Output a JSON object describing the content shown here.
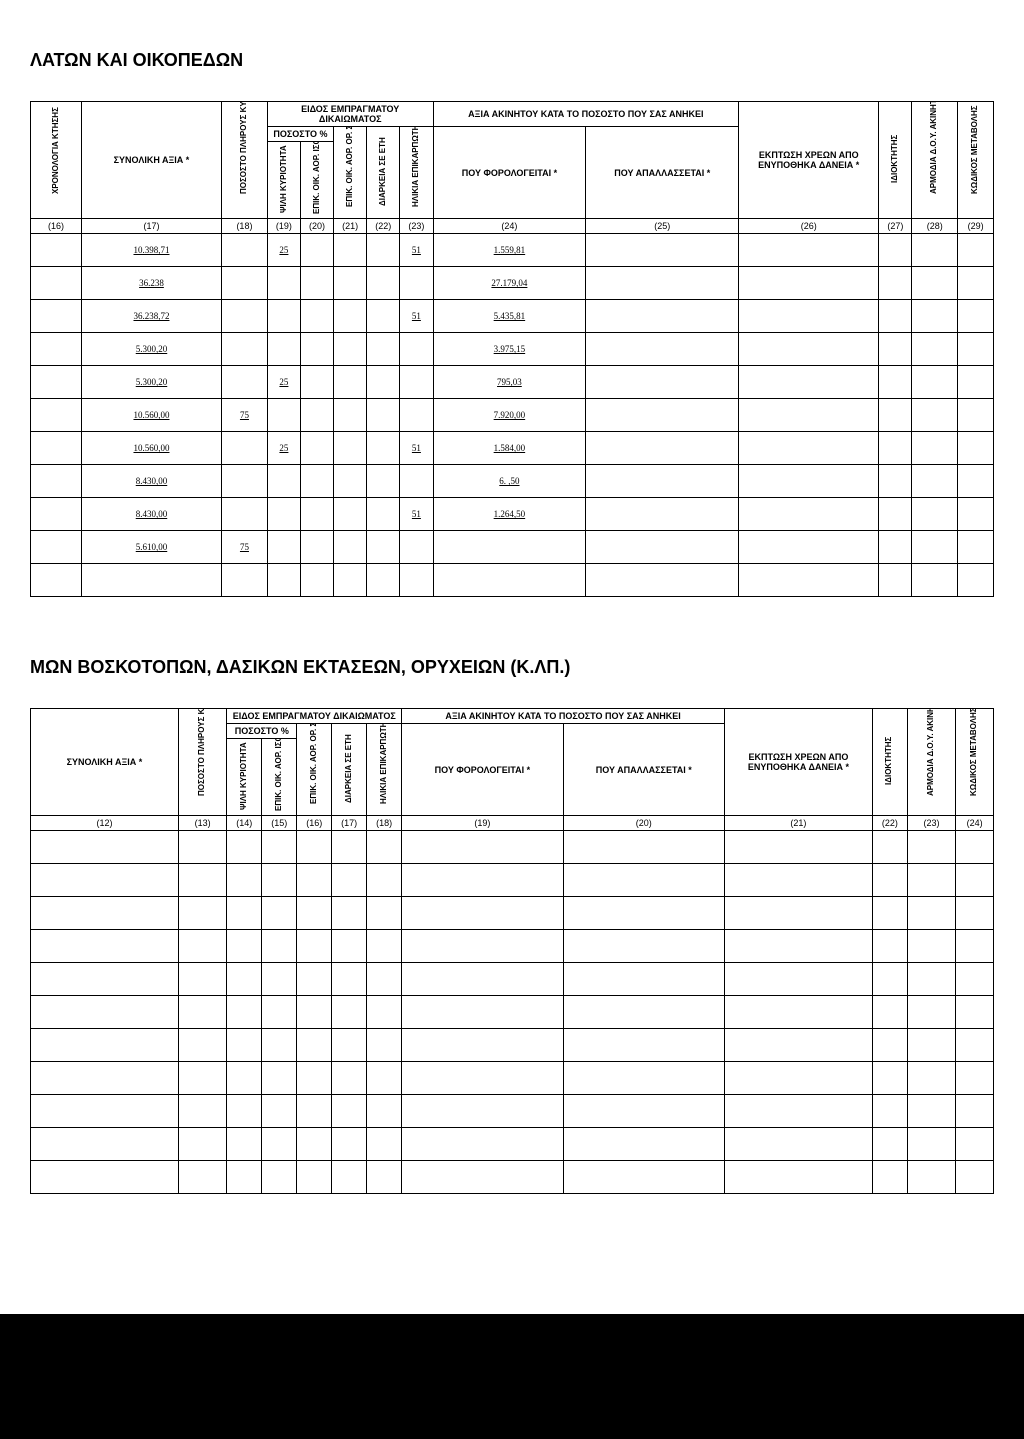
{
  "title1": "ΛΑΤΩΝ ΚΑΙ ΟΙΚΟΠΕΔΩΝ",
  "title2": "ΜΩΝ ΒΟΣΚΟΤΟΠΩΝ, ΔΑΣΙΚΩΝ ΕΚΤΑΣΕΩΝ, ΟΡΥΧΕΙΩΝ (Κ.ΛΠ.)",
  "headers": {
    "chrono": "ΧΡΟΝΟΛΟΓΙΑ ΚΤΗΣΗΣ",
    "total": "ΣΥΝΟΛΙΚΗ ΑΞΙΑ *",
    "pct": "ΠΟΣΟΣΤΟ ΠΛΗΡΟΥΣ ΚΥΡΙΟΤΗΤΑΣ %",
    "eidos": "ΕΙΔΟΣ ΕΜΠΡΑΓΜΑΤΟΥ ΔΙΚΑΙΩΜΑΤΟΣ",
    "pososto": "ΠΟΣΟΣΤΟ %",
    "psili": "ΨΙΛΗ ΚΥΡΙΟΤΗΤΑ",
    "epik1": "ΕΠΙΚ. ΟΙΚ. ΑΟΡ. ΙΣΟΒ. ΑΟΡ. ΧΡΟΝ",
    "epik2": "ΕΠΙΚ. ΟΙΚ. ΑΟΡ. ΟΡ. ΣΕ ΧΡΟΝΟΥ",
    "diarkeia": "ΔΙΑΡΚΕΙΑ ΣΕ ΕΤΗ",
    "ilikia": "ΗΛΙΚΙΑ ΕΠΙΚΑΡΠΩΤΗ",
    "axia": "ΑΞΙΑ ΑΚΙΝΗΤΟΥ ΚΑΤΑ ΤΟ ΠΟΣΟΣΤΟ ΠΟΥ ΣΑΣ ΑΝΗΚΕΙ",
    "taxed": "ΠΟΥ ΦΟΡΟΛΟΓΕΙΤΑΙ *",
    "exempt": "ΠΟΥ ΑΠΑΛΛΑΣΣΕΤΑΙ *",
    "discount": "ΕΚΠΤΩΣΗ ΧΡΕΩΝ ΑΠΟ ΕΝΥΠΟΘΗΚΑ ΔΑΝΕΙΑ *",
    "owner": "ΙΔΙΟΚΤΗΤΗΣ",
    "doy": "ΑΡΜΟΔΙΑ Δ.Ο.Υ. ΑΚΙΝΗΤΟΥ",
    "code": "ΚΩΔΙΚΟΣ ΜΕΤΑΒΟΛΗΣ"
  },
  "cols1": [
    "(16)",
    "(17)",
    "(18)",
    "(19)",
    "(20)",
    "(21)",
    "(22)",
    "(23)",
    "(24)",
    "(25)",
    "(26)",
    "(27)",
    "(28)",
    "(29)"
  ],
  "cols2": [
    "(12)",
    "(13)",
    "(14)",
    "(15)",
    "(16)",
    "(17)",
    "(18)",
    "(19)",
    "(20)",
    "(21)",
    "(22)",
    "(23)",
    "(24)"
  ],
  "rows1": [
    {
      "c17": "10.398,71",
      "c19": "25",
      "c23": "51",
      "c24": "1.559,81"
    },
    {
      "c17": "36.238",
      "c24": "27.179,04"
    },
    {
      "c17": "36.238,72",
      "c23": "51",
      "c24": "5.435,81"
    },
    {
      "c17": "5.300,20",
      "c24": "3.975,15"
    },
    {
      "c17": "5.300,20",
      "c19": "25",
      "c24": "795,03"
    },
    {
      "c17": "10.560,00",
      "c18": "75",
      "c24": "7.920,00"
    },
    {
      "c17": "10.560,00",
      "c19": "25",
      "c23": "51",
      "c24": "1.584,00"
    },
    {
      "c17": "8.430,00",
      "c24": "6.        ,50"
    },
    {
      "c17": "8.430,00",
      "c23": "51",
      "c24": "1.264,50"
    },
    {
      "c17": "5.610,00",
      "c18": "75"
    },
    {}
  ],
  "rows2_count": 11
}
